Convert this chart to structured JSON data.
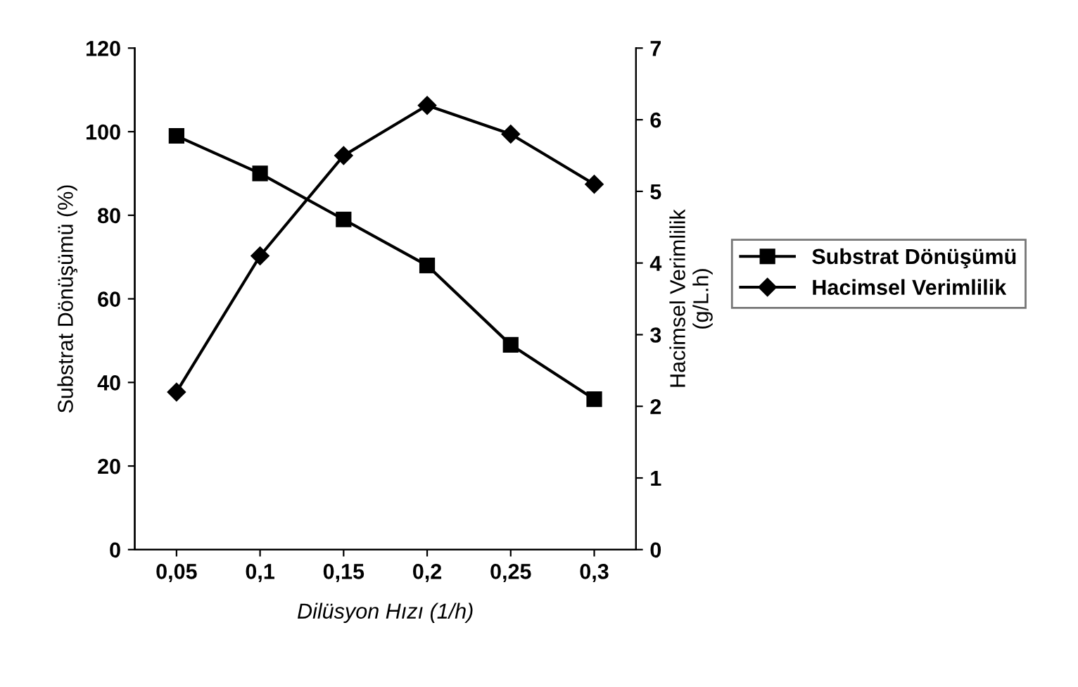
{
  "chart_data": {
    "type": "line",
    "xlabel": "Dilüsyon Hızı (1/h)",
    "ylabel": "Substrat Dönüşümü (%)",
    "y2label": "Hacimsel Verimlilik\n(g/L.h)",
    "categories": [
      "0,05",
      "0,1",
      "0,15",
      "0,2",
      "0,25",
      "0,3"
    ],
    "series": [
      {
        "name": "Substrat Dönüşümü",
        "color": "#000000",
        "marker": "square",
        "values": [
          99,
          90,
          79,
          68,
          49,
          36
        ]
      },
      {
        "name": "Hacimsel Verimlilik",
        "color": "#000000",
        "marker": "diamond",
        "axis": "y2",
        "values": [
          2.2,
          4.1,
          5.5,
          6.2,
          5.8,
          5.1
        ]
      }
    ],
    "ylim": [
      0,
      120
    ],
    "yticks": [
      0,
      20,
      40,
      60,
      80,
      100,
      120
    ],
    "y2lim": [
      0,
      7
    ],
    "y2ticks": [
      0,
      1,
      2,
      3,
      4,
      5,
      6,
      7
    ],
    "grid": false,
    "legend": "right",
    "line_style": "solid"
  }
}
